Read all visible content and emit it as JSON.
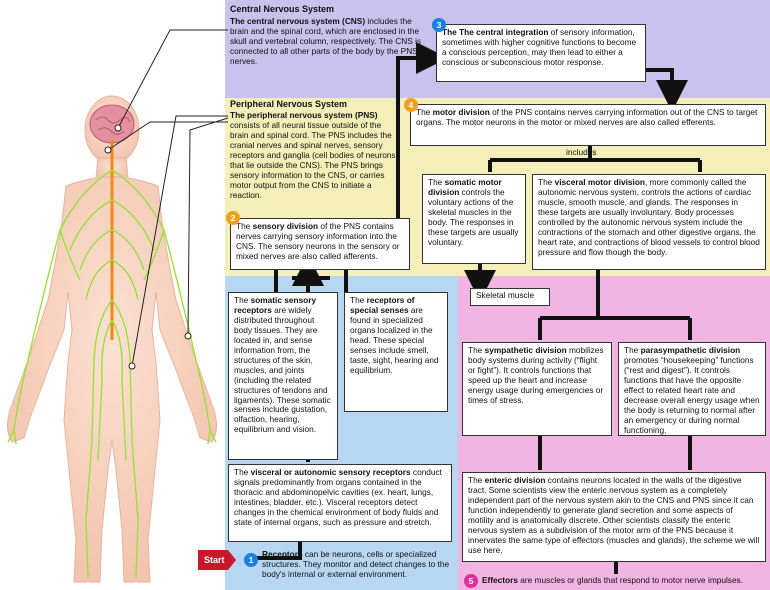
{
  "cns": {
    "title": "Central Nervous System",
    "lead": "The central nervous system (CNS)",
    "text": " includes the brain and the spinal cord, which are enclosed in the skull and vertebral column, respectively. The CNS is connected to all other parts of the body by the PNS nerves."
  },
  "pns": {
    "title": "Peripheral Nervous System",
    "lead": "The peripheral nervous system (PNS)",
    "text": " consists of all neural tissue outside of the brain and spinal cord. The PNS includes the cranial nerves and spinal nerves, sensory receptors and ganglia (cell bodies of neurons that lie outside the CNS). The PNS brings sensory information to the CNS, or carries motor output from the CNS to initiate a reaction."
  },
  "steps": {
    "s1": "1",
    "s2": "2",
    "s3": "3",
    "s4": "4",
    "s5": "5",
    "start": "Start"
  },
  "integration": {
    "lead": "The central integration",
    "text": " of sensory information, sometimes with higher cognitive functions to become a conscious perception, may then lead to either a conscious or subconscious motor response."
  },
  "motor": {
    "pre": "The ",
    "lead": "motor division",
    "text": " of the PNS contains nerves carrying information out of the CNS to target organs. The motor neurons in the motor or mixed nerves are also called efferents.",
    "includes": "includes"
  },
  "sensory": {
    "pre": "The ",
    "lead": "sensory division",
    "text": " of the PNS contains nerves carrying sensory information into the CNS. The sensory neurons in the sensory or mixed nerves are also called afferents."
  },
  "somatic_motor": {
    "pre": "The ",
    "lead": "somatic motor division",
    "text": " controls the voluntary actions of the skeletal muscles in the body. The responses in these targets are usually voluntary."
  },
  "visceral_motor": {
    "pre": "The ",
    "lead": "visceral motor division",
    "text": ", more commonly called the autonomic nervous system, controls the actions of cardiac muscle, smooth muscle, and glands. The responses in these targets are usually involuntary. Body processes controlled by the autonomic nervous system include the contractions of the stomach and other digestive organs, the heart rate, and contractions of blood vessels to control blood pressure and flow though the body."
  },
  "skeletal": "Skeletal muscle",
  "somatic_sensory": {
    "pre": "The ",
    "lead": "somatic sensory receptors",
    "text": " are widely distributed throughout body tissues. They are located in, and sense information from, the structures of the skin, muscles, and joints (including the related structures of tendons and ligaments). These somatic senses include gustation, olfaction, hearing, equilibrium and vision."
  },
  "special": {
    "pre": "The ",
    "lead": "receptors of special senses",
    "text": " are found in specialized organs localized in the head. These special senses include smell, taste, sight, hearing and equilibrium."
  },
  "visceral_sensory": {
    "pre": "The ",
    "lead": "visceral or autonomic sensory receptors",
    "text": " conduct signals predominantly from organs contained in the thoracic and abdominopelvic cavities (ex. heart, lungs, intestines, bladder, etc.). Visceral receptors detect changes in the chemical environment of body fluids and state of internal organs, such as pressure and stretch."
  },
  "receptors": {
    "lead": "Receptors",
    "text": " can be neurons, cells or specialized structures. They monitor and detect changes to the body's internal or external environment."
  },
  "sympathetic": {
    "pre": "The ",
    "lead": "sympathetic division",
    "text": " mobilizes body systems during activity (“flight or fight”). It controls functions that speed up the heart and increase energy usage during emergencies or times of stress."
  },
  "parasympathetic": {
    "pre": "The ",
    "lead": "parasympathetic division",
    "text": " promotes “housekeeping” functions (“rest and digest”). It controls functions that have the opposite effect to related heart rate and decrease overall energy usage when the body is returning to normal after an emergency or during normal functioning."
  },
  "enteric": {
    "pre": "The ",
    "lead": "enteric division",
    "text": " contains neurons located in the walls of the digestive tract. Some scientists view the enteric nervous system as a completely independent part of the nervous system akin to the CNS and PNS since it can function independently to generate gland secretion and some aspects of motility and is anatomically discrete. Other scientists classify the enteric nervous system as a subdivision of the motor arm of the PNS because it innervates the same type of effectors (muscles and glands), the scheme we will use here."
  },
  "effectors": {
    "lead": "Effectors",
    "text": " are muscles or glands that respond to motor nerve impulses."
  },
  "colors": {
    "cns_bg": "#c8c2ec",
    "pns_bg": "#f4efb8",
    "sensory_bg": "#b6d6f2",
    "autonomic_bg": "#f2b4e2",
    "blue_num": "#1a7fe0",
    "orange_num": "#f0a020",
    "pink_num": "#e0309a",
    "start": "#c8162a"
  }
}
